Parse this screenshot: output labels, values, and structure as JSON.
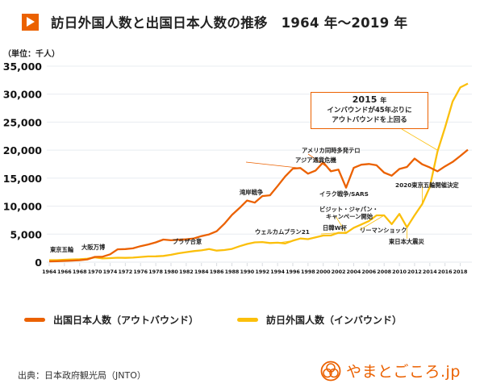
{
  "header": {
    "title": "訪日外国人数と出国日本人数の推移　1964 年～2019 年",
    "icon": "play-triangle-icon",
    "accent_color": "#eb6100"
  },
  "unit_label": "（単位：千人）",
  "callout": {
    "year": "2015",
    "year_suffix": "年",
    "line1": "インバウンドが45年ぶりに",
    "line2": "アウトバウンドを上回る"
  },
  "legend": [
    {
      "label": "出国日本人数（アウトバウンド）",
      "color": "#eb6100"
    },
    {
      "label": "訪日外国人数（インバウンド）",
      "color": "#fbbf0b"
    }
  ],
  "source": "出典：日本政府観光局（JNTO）",
  "logo": {
    "text": "やまとごころ.jp",
    "icon": "yamatogokoro-logo-icon"
  },
  "chart_data": {
    "type": "line",
    "title": "訪日外国人数と出国日本人数の推移　1964 年～2019 年",
    "xlabel": "",
    "ylabel": "（単位：千人）",
    "ylim": [
      0,
      35000
    ],
    "yticks": [
      0,
      5000,
      10000,
      15000,
      20000,
      25000,
      30000,
      35000
    ],
    "ytick_labels": [
      "0",
      "5,000",
      "10,000",
      "15,000",
      "20,000",
      "25,000",
      "30,000",
      "35,000"
    ],
    "xtick_labels": [
      "1964",
      "1966",
      "1968",
      "1970",
      "1974",
      "1972",
      "1976",
      "1978",
      "1980",
      "1982",
      "1984",
      "1986",
      "1988",
      "1990",
      "1992",
      "1994",
      "1996",
      "1998",
      "2000",
      "2002",
      "2004",
      "2006",
      "2008",
      "2010",
      "2012",
      "2014",
      "2016",
      "2018"
    ],
    "grid": true,
    "legend_position": "bottom",
    "x": [
      1964,
      1965,
      1966,
      1967,
      1968,
      1969,
      1970,
      1971,
      1972,
      1973,
      1974,
      1975,
      1976,
      1977,
      1978,
      1979,
      1980,
      1981,
      1982,
      1983,
      1984,
      1985,
      1986,
      1987,
      1988,
      1989,
      1990,
      1991,
      1992,
      1993,
      1994,
      1995,
      1996,
      1997,
      1998,
      1999,
      2000,
      2001,
      2002,
      2003,
      2004,
      2005,
      2006,
      2007,
      2008,
      2009,
      2010,
      2011,
      2012,
      2013,
      2014,
      2015,
      2016,
      2017,
      2018,
      2019
    ],
    "series": [
      {
        "name": "出国日本人数（アウトバウンド）",
        "color": "#eb6100",
        "values": [
          128,
          159,
          212,
          267,
          344,
          493,
          936,
          961,
          1392,
          2289,
          2336,
          2466,
          2853,
          3151,
          3525,
          4038,
          3909,
          4006,
          4086,
          4232,
          4659,
          4948,
          5516,
          6829,
          8427,
          9663,
          10997,
          10634,
          11791,
          11934,
          13579,
          15298,
          16695,
          16803,
          15806,
          16358,
          17819,
          16216,
          16523,
          13296,
          16831,
          17404,
          17535,
          17295,
          15987,
          15446,
          16637,
          16994,
          18491,
          17473,
          16903,
          16214,
          17116,
          17889,
          18954,
          20081
        ]
      },
      {
        "name": "訪日外国人数（インバウンド）",
        "color": "#fbbf0b",
        "values": [
          353,
          367,
          433,
          477,
          519,
          609,
          854,
          661,
          724,
          785,
          764,
          812,
          915,
          1028,
          1039,
          1113,
          1317,
          1583,
          1793,
          1968,
          2110,
          2327,
          2062,
          2155,
          2355,
          2835,
          3236,
          3533,
          3582,
          3410,
          3468,
          3345,
          3837,
          4218,
          4106,
          4438,
          4757,
          4772,
          5239,
          5212,
          6138,
          6728,
          7334,
          8347,
          8351,
          6790,
          8611,
          6219,
          8358,
          10364,
          13413,
          19737,
          24039,
          28691,
          31192,
          31882
        ]
      }
    ],
    "annotations": [
      {
        "text": "東京五輪",
        "year": 1964
      },
      {
        "text": "大阪万博",
        "year": 1970
      },
      {
        "text": "プラザ合意",
        "year": 1985
      },
      {
        "text": "湾岸戦争",
        "year": 1991
      },
      {
        "text": "アジア通貨危機",
        "year": 1997
      },
      {
        "text": "アメリカ同時多発テロ",
        "year": 2001
      },
      {
        "text": "イラク戦争/SARS",
        "year": 2003
      },
      {
        "text": "ウェルカムプラン21",
        "year": 1996
      },
      {
        "text": "日韓W杯",
        "year": 2002
      },
      {
        "text": "ビジット・ジャパン・",
        "text2": "キャンペーン開始",
        "year": 2003
      },
      {
        "text": "リーマンショック",
        "year": 2008
      },
      {
        "text": "東日本大震災",
        "year": 2011
      },
      {
        "text": "2020東京五輪開催決定",
        "year": 2013
      }
    ]
  }
}
